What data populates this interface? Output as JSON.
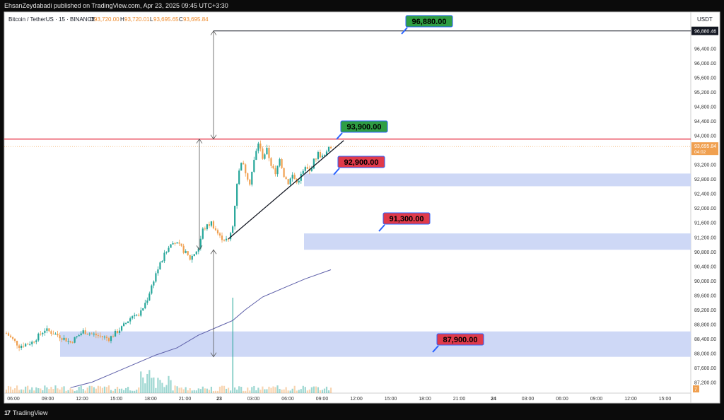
{
  "publish_line": "EhsanZeydabadi published on TradingView.com, Apr 23, 2025 09:45 UTC+3:30",
  "branding": {
    "logo_glyph": "17",
    "name": "TradingView"
  },
  "symbol": {
    "title": "Bitcoin / TetherUS · 15 · BINANCE",
    "open_label": "O",
    "open": "93,720.00",
    "high_label": "H",
    "high": "93,720.01",
    "low_label": "L",
    "low": "93,695.65",
    "close_label": "C",
    "close": "93,695.84"
  },
  "colors": {
    "up": "#26a69a",
    "down": "#f0a050",
    "resistance": "#e8374a",
    "zone": "#c9d4f5",
    "ma": "#5c5ea8",
    "label_green": "#2f9e44",
    "label_red": "#e03a4a"
  },
  "chart_data": {
    "type": "candlestick",
    "currency": "USDT",
    "ylim": [
      86900,
      97400
    ],
    "price_ticks": [
      "96,400.00",
      "96,000.00",
      "95,600.00",
      "95,200.00",
      "94,800.00",
      "94,400.00",
      "94,000.00",
      "93,600.00",
      "93,200.00",
      "92,800.00",
      "92,400.00",
      "92,000.00",
      "91,600.00",
      "91,200.00",
      "90,800.00",
      "90,400.00",
      "90,000.00",
      "89,600.00",
      "89,200.00",
      "88,800.00",
      "88,400.00",
      "88,000.00",
      "87,600.00",
      "87,200.00"
    ],
    "time_labels": [
      "06:00",
      "09:00",
      "12:00",
      "15:00",
      "18:00",
      "21:00",
      "23",
      "03:00",
      "06:00",
      "09:00",
      "12:00",
      "15:00",
      "18:00",
      "21:00",
      "24",
      "03:00",
      "06:00",
      "09:00",
      "12:00",
      "15:00"
    ],
    "last_price": "93,695.84",
    "countdown": "04:02",
    "target_axis_price": "96,880.46",
    "vol_axis_tag": "7",
    "path": [
      [
        0,
        88550
      ],
      [
        6,
        88200
      ],
      [
        12,
        88300
      ],
      [
        18,
        88650
      ],
      [
        24,
        88500
      ],
      [
        30,
        88300
      ],
      [
        36,
        88600
      ],
      [
        42,
        88500
      ],
      [
        48,
        88400
      ],
      [
        54,
        88700
      ],
      [
        60,
        89100
      ],
      [
        62,
        89000
      ],
      [
        66,
        89500
      ],
      [
        70,
        90200
      ],
      [
        74,
        90700
      ],
      [
        78,
        91100
      ],
      [
        82,
        90900
      ],
      [
        86,
        90600
      ],
      [
        90,
        90900
      ],
      [
        92,
        91400
      ],
      [
        96,
        91600
      ],
      [
        100,
        91200
      ],
      [
        104,
        91100
      ],
      [
        106,
        91500
      ],
      [
        108,
        92700
      ],
      [
        110,
        93300
      ],
      [
        112,
        93000
      ],
      [
        114,
        92700
      ],
      [
        116,
        93300
      ],
      [
        118,
        93800
      ],
      [
        120,
        93400
      ],
      [
        122,
        93600
      ],
      [
        124,
        93200
      ],
      [
        126,
        92900
      ],
      [
        128,
        93400
      ],
      [
        130,
        92900
      ],
      [
        132,
        92700
      ],
      [
        134,
        92900
      ],
      [
        136,
        92700
      ],
      [
        138,
        92900
      ],
      [
        140,
        93100
      ],
      [
        142,
        93000
      ],
      [
        144,
        93300
      ],
      [
        146,
        93500
      ],
      [
        148,
        93400
      ],
      [
        150,
        93500
      ],
      [
        151,
        93700
      ],
      [
        152,
        93695
      ]
    ],
    "ma_path": [
      [
        30,
        87050
      ],
      [
        40,
        87200
      ],
      [
        50,
        87450
      ],
      [
        60,
        87700
      ],
      [
        70,
        87950
      ],
      [
        80,
        88150
      ],
      [
        90,
        88500
      ],
      [
        100,
        88750
      ],
      [
        106,
        88900
      ],
      [
        112,
        89200
      ],
      [
        120,
        89550
      ],
      [
        130,
        89800
      ],
      [
        140,
        90050
      ],
      [
        152,
        90300
      ]
    ],
    "volume_spike_index": 106,
    "annotations": {
      "levels": [
        {
          "text": "96,880.00",
          "price": 96880
        },
        {
          "text": "93,900.00",
          "price": 93900
        },
        {
          "text": "92,900.00",
          "price": 92900
        },
        {
          "text": "91,300.00",
          "price": 91300
        },
        {
          "text": "87,900.00",
          "price": 87900
        }
      ],
      "resistance_price": 93900,
      "zones": [
        {
          "from": 92600,
          "to": 92950
        },
        {
          "from": 90850,
          "to": 91300
        },
        {
          "from": 87900,
          "to": 88600
        }
      ],
      "trendline": [
        [
          104,
          91150
        ],
        [
          158,
          93860
        ]
      ]
    }
  }
}
